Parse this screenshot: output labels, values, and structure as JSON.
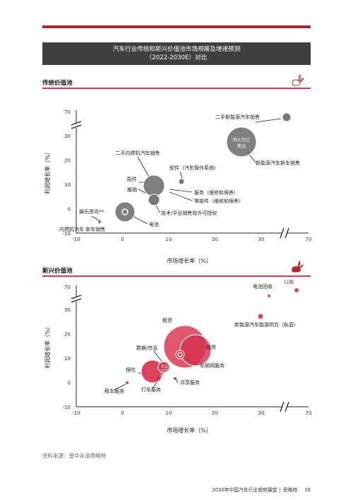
{
  "page": {
    "title_line1": "汽车行业传统和新兴价值池市场规模及增速预测",
    "title_line2": "（2022-2030E）对比",
    "source": "资料来源：普华永道思略特",
    "footer_text": "2030年中国汽车行业趋势展望",
    "footer_author": "思略特",
    "page_number": "16"
  },
  "colors": {
    "accent_red": "#b5252f",
    "pink": "#d23a55",
    "title_bg": "#3f3f3f",
    "bubble_grey": "#6a6a6a",
    "bubble_red": "#d6304c"
  },
  "chart_data": [
    {
      "type": "scatter",
      "section_title": "传统价值池",
      "icon": "rabbit-outline-icon",
      "xlabel": "市场增长率（%）",
      "ylabel": "利润增长率（%）",
      "x_ticks": [
        "-10",
        "0",
        "10",
        "20",
        "30",
        "70"
      ],
      "y_ticks": [
        "-10",
        "0",
        "10",
        "20",
        "30",
        "70"
      ],
      "axis_break": "30-70",
      "bubble_color": "#6a6a6a",
      "points": [
        {
          "label": "二手新能源汽车销售",
          "x": 35,
          "y": 40,
          "size": 1
        },
        {
          "label": "新能源汽车新车销售",
          "x": 27,
          "y": 29,
          "size": 3
        },
        {
          "label": "二手内燃机汽车销售",
          "x": 7,
          "y": 11,
          "size": 2
        },
        {
          "label": "配件",
          "x": 6,
          "y": 10,
          "size": 0
        },
        {
          "label": "推销",
          "x": 6,
          "y": 8,
          "size": 0
        },
        {
          "label": "软件（汽车操作系统）",
          "x": 13,
          "y": 13,
          "size": 0.6
        },
        {
          "label": "服务（维修和保养）",
          "x": 10,
          "y": 10,
          "size": 0
        },
        {
          "label": "零部件（维修和保养）",
          "x": 10,
          "y": 8,
          "size": 0
        },
        {
          "label": "技术/平台销售和许可授权",
          "x": 7,
          "y": 5,
          "size": 1
        },
        {
          "label": "电池",
          "x": 1,
          "y": 1,
          "size": 2
        },
        {
          "label": "娱乐资讯**",
          "x": -5,
          "y": -3,
          "size": 0.3
        },
        {
          "label": "内燃机汽车 新车销售",
          "x": 0,
          "y": 1,
          "size": 0
        }
      ],
      "annotations": [
        {
          "text_line1": "约1万亿",
          "text_line2": "美元"
        }
      ]
    },
    {
      "type": "scatter",
      "section_title": "新兴价值池",
      "icon": "rabbit-filled-icon",
      "xlabel": "市场增长率（%）",
      "ylabel": "利润增长率（%）",
      "x_ticks": [
        "-10",
        "0",
        "10",
        "20",
        "30",
        "70"
      ],
      "y_ticks": [
        "-10",
        "0",
        "10",
        "20",
        "30",
        "70"
      ],
      "axis_break": "30-70",
      "bubble_color": "#d6304c",
      "points": [
        {
          "label": "订阅",
          "x": 37,
          "y": 38,
          "size": 0.5
        },
        {
          "label": "电池回收",
          "x": 31,
          "y": 34,
          "size": 0.3
        },
        {
          "label": "新能源汽车能源供应（私营）",
          "x": 30,
          "y": 28,
          "size": 0.7
        },
        {
          "label": "租赁",
          "x": 13,
          "y": 14,
          "size": 4
        },
        {
          "label": "融资",
          "x": 14,
          "y": 12,
          "size": 3
        },
        {
          "label": "车联网服务",
          "x": 12,
          "y": 10,
          "size": 1
        },
        {
          "label": "数据/信息",
          "x": 8,
          "y": 6,
          "size": 0.5
        },
        {
          "label": "保险",
          "x": 7,
          "y": 5,
          "size": 2
        },
        {
          "label": "打车服务",
          "x": 6,
          "y": 2,
          "size": 0.5
        },
        {
          "label": "共享服务",
          "x": 11,
          "y": 1,
          "size": 0.3
        },
        {
          "label": "租车服务",
          "x": 1,
          "y": -1,
          "size": 0.3
        }
      ],
      "annotations": [
        {
          "text_line1": "0.2",
          "text_line2": "万亿",
          "text_line3": "美元"
        }
      ]
    }
  ]
}
